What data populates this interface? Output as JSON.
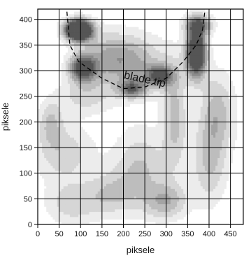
{
  "chart_data": {
    "type": "heatmap",
    "subtype": "contour",
    "xlabel": "piksele",
    "ylabel": "piksele",
    "xlim": [
      0,
      480
    ],
    "ylim": [
      0,
      420
    ],
    "x_ticks": [
      0,
      50,
      100,
      150,
      200,
      250,
      300,
      350,
      400,
      450
    ],
    "y_ticks": [
      0,
      50,
      100,
      150,
      200,
      250,
      300,
      350,
      400
    ],
    "grid": true,
    "annotation": {
      "text": "blade tip",
      "x": 200,
      "y": 285
    },
    "blade_curve": [
      [
        68,
        415
      ],
      [
        75,
        350
      ],
      [
        95,
        318
      ],
      [
        150,
        285
      ],
      [
        200,
        265
      ],
      [
        250,
        268
      ],
      [
        300,
        285
      ],
      [
        340,
        318
      ],
      [
        370,
        350
      ],
      [
        385,
        380
      ],
      [
        390,
        415
      ]
    ],
    "colormap": {
      "levels": [
        1,
        2,
        3,
        4,
        5,
        6,
        7
      ],
      "colors": [
        "#ececec",
        "#d6d6d6",
        "#bdbdbd",
        "#a4a4a4",
        "#8a8a8a",
        "#6f6f6f",
        "#555555"
      ]
    },
    "hotspots": [
      {
        "x": 95,
        "y": 380,
        "sx": 22,
        "sy": 14,
        "amp": 8.5
      },
      {
        "x": 105,
        "y": 305,
        "sx": 22,
        "sy": 18,
        "amp": 4.5
      },
      {
        "x": 370,
        "y": 335,
        "sx": 16,
        "sy": 32,
        "amp": 6.5
      },
      {
        "x": 375,
        "y": 390,
        "sx": 22,
        "sy": 14,
        "amp": 3.5
      },
      {
        "x": 285,
        "y": 290,
        "sx": 22,
        "sy": 14,
        "amp": 3.5
      },
      {
        "x": 220,
        "y": 265,
        "sx": 22,
        "sy": 12,
        "amp": 3.0
      },
      {
        "x": 230,
        "y": 310,
        "sx": 60,
        "sy": 40,
        "amp": 1.8
      },
      {
        "x": 165,
        "y": 330,
        "sx": 50,
        "sy": 35,
        "amp": 1.6
      },
      {
        "x": 320,
        "y": 210,
        "sx": 20,
        "sy": 70,
        "amp": 1.8
      },
      {
        "x": 420,
        "y": 220,
        "sx": 30,
        "sy": 55,
        "amp": 1.8
      },
      {
        "x": 400,
        "y": 120,
        "sx": 30,
        "sy": 60,
        "amp": 1.6
      },
      {
        "x": 240,
        "y": 110,
        "sx": 45,
        "sy": 55,
        "amp": 1.7
      },
      {
        "x": 300,
        "y": 45,
        "sx": 35,
        "sy": 25,
        "amp": 1.9
      },
      {
        "x": 60,
        "y": 140,
        "sx": 50,
        "sy": 40,
        "amp": 1.5
      },
      {
        "x": 30,
        "y": 200,
        "sx": 20,
        "sy": 30,
        "amp": 1.5
      },
      {
        "x": 80,
        "y": 40,
        "sx": 45,
        "sy": 30,
        "amp": 1.4
      },
      {
        "x": 170,
        "y": 60,
        "sx": 40,
        "sy": 30,
        "amp": 1.4
      },
      {
        "x": 110,
        "y": 250,
        "sx": 45,
        "sy": 25,
        "amp": 1.3
      }
    ]
  }
}
